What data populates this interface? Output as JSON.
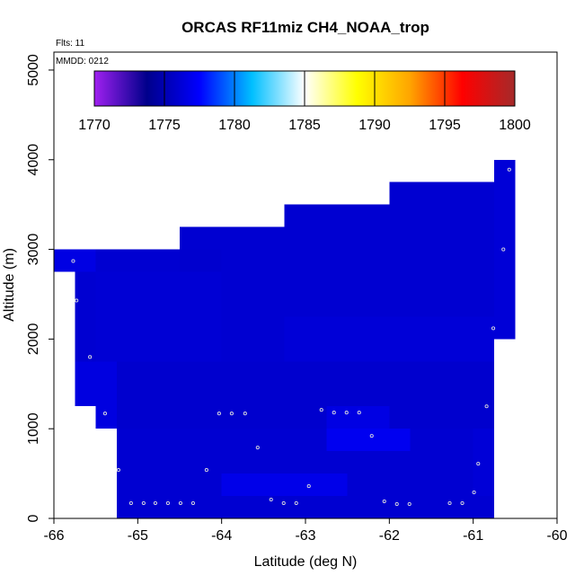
{
  "chart_data": {
    "type": "heatmap",
    "title": "ORCAS RF11miz CH4_NOAA_trop",
    "annotations": {
      "flights": "Flts: 11",
      "date": "MMDD: 0212"
    },
    "xlabel": "Latitude (deg N)",
    "ylabel": "Altitude (m)",
    "xlim": [
      -66,
      -60
    ],
    "ylim": [
      0,
      5200
    ],
    "x_ticks": [
      -66,
      -65,
      -64,
      -63,
      -62,
      -61,
      -60
    ],
    "x_tick_labels": [
      "-66",
      "-65",
      "-64",
      "-63",
      "-62",
      "-61",
      "-60"
    ],
    "y_ticks": [
      0,
      1000,
      2000,
      3000,
      4000,
      5000
    ],
    "y_tick_labels": [
      "0",
      "1000",
      "2000",
      "3000",
      "4000",
      "5000"
    ],
    "colorbar": {
      "min": 1770,
      "max": 1800,
      "ticks": [
        1770,
        1775,
        1780,
        1785,
        1790,
        1795,
        1800
      ],
      "tick_labels": [
        "1770",
        "1775",
        "1780",
        "1785",
        "1790",
        "1795",
        "1800"
      ],
      "colors": [
        "#a020f0",
        "#00008b",
        "#0000ff",
        "#00bfff",
        "#ffffff",
        "#ffff00",
        "#ffa500",
        "#ff0000",
        "#a52a2a"
      ]
    },
    "cells": [
      {
        "x0": -66.0,
        "x1": -65.5,
        "y0": 2750,
        "y1": 3000,
        "value": 1776.6
      },
      {
        "x0": -65.5,
        "x1": -64.5,
        "y0": 2750,
        "y1": 3000,
        "value": 1776.0
      },
      {
        "x0": -65.75,
        "x1": -65.5,
        "y0": 1750,
        "y1": 2750,
        "value": 1776.0
      },
      {
        "x0": -65.5,
        "x1": -64.5,
        "y0": 1750,
        "y1": 2750,
        "value": 1776.1
      },
      {
        "x0": -64.5,
        "x1": -63.25,
        "y0": 3000,
        "y1": 3250,
        "value": 1776.0
      },
      {
        "x0": -64.5,
        "x1": -64.0,
        "y0": 2750,
        "y1": 3000,
        "value": 1775.9
      },
      {
        "x0": -64.0,
        "x1": -63.25,
        "y0": 1750,
        "y1": 3000,
        "value": 1776.0
      },
      {
        "x0": -64.5,
        "x1": -64.0,
        "y0": 1750,
        "y1": 2750,
        "value": 1776.1
      },
      {
        "x0": -63.25,
        "x1": -62.0,
        "y0": 3250,
        "y1": 3500,
        "value": 1776.0
      },
      {
        "x0": -62.0,
        "x1": -60.75,
        "y0": 3500,
        "y1": 3750,
        "value": 1776.0
      },
      {
        "x0": -60.75,
        "x1": -60.5,
        "y0": 2000,
        "y1": 4000,
        "value": 1776.2
      },
      {
        "x0": -63.25,
        "x1": -60.75,
        "y0": 2250,
        "y1": 3500,
        "value": 1776.0
      },
      {
        "x0": -63.25,
        "x1": -60.75,
        "y0": 1750,
        "y1": 2250,
        "value": 1776.2
      },
      {
        "x0": -65.75,
        "x1": -65.25,
        "y0": 1250,
        "y1": 1750,
        "value": 1776.5
      },
      {
        "x0": -65.5,
        "x1": -65.25,
        "y0": 1000,
        "y1": 1250,
        "value": 1776.5
      },
      {
        "x0": -65.25,
        "x1": -60.75,
        "y0": 1000,
        "y1": 1750,
        "value": 1775.9
      },
      {
        "x0": -62.75,
        "x1": -62.0,
        "y0": 1000,
        "y1": 1250,
        "value": 1776.6
      },
      {
        "x0": -65.25,
        "x1": -60.75,
        "y0": 0,
        "y1": 1000,
        "value": 1776.0
      },
      {
        "x0": -62.75,
        "x1": -61.75,
        "y0": 750,
        "y1": 1000,
        "value": 1777.0
      },
      {
        "x0": -64.0,
        "x1": -62.5,
        "y0": 250,
        "y1": 500,
        "value": 1776.8
      },
      {
        "x0": -61.0,
        "x1": -60.75,
        "y0": 250,
        "y1": 1000,
        "value": 1776.2
      }
    ],
    "flight_points": [
      {
        "lat": -65.77,
        "alt": 2870
      },
      {
        "lat": -65.73,
        "alt": 2430
      },
      {
        "lat": -65.57,
        "alt": 1800
      },
      {
        "lat": -65.39,
        "alt": 1170
      },
      {
        "lat": -65.23,
        "alt": 540
      },
      {
        "lat": -65.08,
        "alt": 170
      },
      {
        "lat": -64.93,
        "alt": 170
      },
      {
        "lat": -64.79,
        "alt": 170
      },
      {
        "lat": -64.64,
        "alt": 170
      },
      {
        "lat": -64.49,
        "alt": 170
      },
      {
        "lat": -64.34,
        "alt": 170
      },
      {
        "lat": -64.18,
        "alt": 540
      },
      {
        "lat": -64.03,
        "alt": 1170
      },
      {
        "lat": -63.88,
        "alt": 1170
      },
      {
        "lat": -63.72,
        "alt": 1170
      },
      {
        "lat": -63.57,
        "alt": 790
      },
      {
        "lat": -63.41,
        "alt": 210
      },
      {
        "lat": -63.26,
        "alt": 170
      },
      {
        "lat": -63.11,
        "alt": 170
      },
      {
        "lat": -62.96,
        "alt": 360
      },
      {
        "lat": -62.81,
        "alt": 1210
      },
      {
        "lat": -62.66,
        "alt": 1180
      },
      {
        "lat": -62.51,
        "alt": 1180
      },
      {
        "lat": -62.36,
        "alt": 1180
      },
      {
        "lat": -62.21,
        "alt": 920
      },
      {
        "lat": -62.06,
        "alt": 190
      },
      {
        "lat": -61.91,
        "alt": 160
      },
      {
        "lat": -61.76,
        "alt": 160
      },
      {
        "lat": -61.28,
        "alt": 170
      },
      {
        "lat": -61.13,
        "alt": 170
      },
      {
        "lat": -60.99,
        "alt": 290
      },
      {
        "lat": -60.94,
        "alt": 610
      },
      {
        "lat": -60.84,
        "alt": 1250
      },
      {
        "lat": -60.76,
        "alt": 2120
      },
      {
        "lat": -60.64,
        "alt": 3000
      },
      {
        "lat": -60.57,
        "alt": 3890
      }
    ]
  }
}
